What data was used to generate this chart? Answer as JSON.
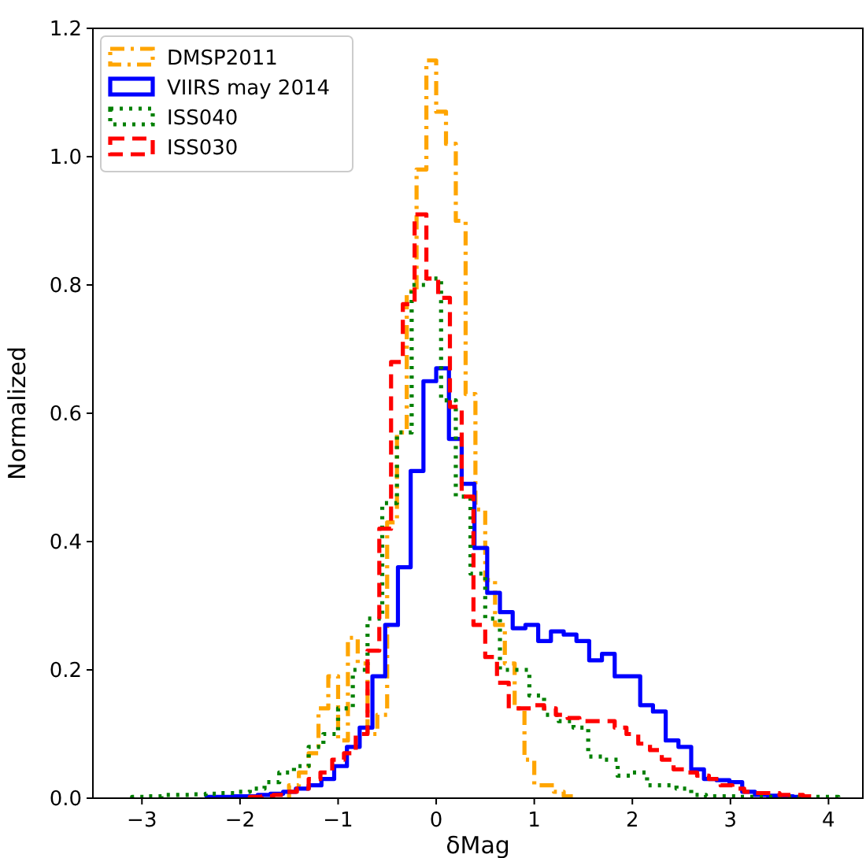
{
  "chart_data": {
    "type": "step",
    "xlabel": "δMag",
    "ylabel": "Normalized",
    "xlim": [
      -3.5,
      4.35
    ],
    "ylim": [
      0,
      1.2
    ],
    "xticks": [
      {
        "value": -3,
        "label": "−3"
      },
      {
        "value": -2,
        "label": "−2"
      },
      {
        "value": -1,
        "label": "−1"
      },
      0,
      1,
      2,
      3,
      4
    ],
    "yticks": [
      {
        "value": 0,
        "label": "0.0"
      },
      {
        "value": 0.2,
        "label": "0.2"
      },
      {
        "value": 0.4,
        "label": "0.4"
      },
      {
        "value": 0.6,
        "label": "0.6"
      },
      {
        "value": 0.8,
        "label": "0.8"
      },
      {
        "value": 1,
        "label": "1.0"
      },
      {
        "value": 1.2,
        "label": "1.2"
      }
    ],
    "grid": false,
    "legend": "top left",
    "marker": "none",
    "series": [
      {
        "name": "DMSP2011",
        "color": "#ffa500",
        "line_style": "dashdot",
        "x": [
          -1.5,
          -1.5,
          -1.4,
          -1.3,
          -1.2,
          -1.1,
          -1.0,
          -0.9,
          -0.8,
          -0.7,
          -0.6,
          -0.5,
          -0.4,
          -0.3,
          -0.2,
          -0.1,
          0,
          0.1,
          0.2,
          0.3,
          0.4,
          0.5,
          0.6,
          0.7,
          0.8,
          0.9,
          1.0,
          1.1,
          1.2,
          1.3,
          1.4
        ],
        "values": [
          0,
          0.02,
          0.04,
          0.07,
          0.14,
          0.19,
          0.09,
          0.25,
          0.21,
          0.1,
          0.13,
          0.43,
          0.57,
          0.79,
          0.98,
          1.15,
          1.07,
          1.02,
          0.9,
          0.63,
          0.45,
          0.34,
          0.27,
          0.21,
          0.14,
          0.06,
          0.02,
          0.02,
          0.01,
          0.003,
          0
        ]
      },
      {
        "name": "VIIRS may 2014",
        "color": "#0000ff",
        "line_style": "solid",
        "x": [
          -2.34,
          -2.34,
          -2.21,
          -2.08,
          -1.95,
          -1.82,
          -1.69,
          -1.56,
          -1.43,
          -1.3,
          -1.17,
          -1.04,
          -0.91,
          -0.78,
          -0.65,
          -0.52,
          -0.39,
          -0.26,
          -0.13,
          0,
          0.13,
          0.26,
          0.39,
          0.52,
          0.65,
          0.78,
          0.91,
          1.04,
          1.17,
          1.3,
          1.43,
          1.56,
          1.69,
          1.82,
          1.95,
          2.08,
          2.21,
          2.34,
          2.47,
          2.6,
          2.73,
          2.86,
          2.99,
          3.12,
          3.25,
          3.38,
          3.51,
          3.64,
          3.77
        ],
        "values": [
          0,
          0.002,
          0.002,
          0.003,
          0.003,
          0.005,
          0.007,
          0.01,
          0.015,
          0.02,
          0.03,
          0.05,
          0.08,
          0.11,
          0.19,
          0.27,
          0.36,
          0.51,
          0.65,
          0.67,
          0.56,
          0.49,
          0.39,
          0.32,
          0.29,
          0.265,
          0.27,
          0.245,
          0.26,
          0.255,
          0.245,
          0.215,
          0.225,
          0.19,
          0.19,
          0.145,
          0.135,
          0.09,
          0.08,
          0.045,
          0.03,
          0.028,
          0.025,
          0.01,
          0.005,
          0.004,
          0.003,
          0.002,
          0
        ]
      },
      {
        "name": "ISS040",
        "color": "#008000",
        "line_style": "dotted",
        "x": [
          -3.1,
          -3.1,
          -2.95,
          -2.8,
          -2.65,
          -2.5,
          -2.35,
          -2.2,
          -2.05,
          -1.9,
          -1.75,
          -1.6,
          -1.45,
          -1.3,
          -1.15,
          -1.0,
          -0.85,
          -0.7,
          -0.55,
          -0.4,
          -0.25,
          -0.1,
          0.05,
          0.2,
          0.35,
          0.5,
          0.65,
          0.8,
          0.95,
          1.1,
          1.25,
          1.4,
          1.55,
          1.7,
          1.85,
          2.0,
          2.15,
          2.3,
          2.45,
          2.6,
          2.75,
          2.9,
          3.05,
          3.2,
          3.35,
          3.5,
          3.65,
          3.8,
          3.95,
          4.1
        ],
        "values": [
          0,
          0.002,
          0.003,
          0.005,
          0.005,
          0.006,
          0.007,
          0.008,
          0.01,
          0.015,
          0.025,
          0.04,
          0.05,
          0.08,
          0.1,
          0.14,
          0.2,
          0.28,
          0.46,
          0.57,
          0.8,
          0.81,
          0.62,
          0.47,
          0.35,
          0.28,
          0.2,
          0.2,
          0.16,
          0.13,
          0.12,
          0.11,
          0.065,
          0.06,
          0.035,
          0.04,
          0.02,
          0.02,
          0.015,
          0.005,
          0.003,
          0.003,
          0.002,
          0.002,
          0.002,
          0.002,
          0.002,
          0.002,
          0.002,
          0
        ]
      },
      {
        "name": "ISS030",
        "color": "#ff0000",
        "line_style": "dashed",
        "x": [
          -1.9,
          -1.9,
          -1.78,
          -1.66,
          -1.54,
          -1.42,
          -1.3,
          -1.18,
          -1.06,
          -0.94,
          -0.82,
          -0.7,
          -0.58,
          -0.46,
          -0.34,
          -0.22,
          -0.1,
          0.02,
          0.14,
          0.26,
          0.38,
          0.5,
          0.62,
          0.74,
          0.86,
          0.98,
          1.1,
          1.22,
          1.34,
          1.46,
          1.58,
          1.7,
          1.82,
          1.94,
          2.06,
          2.18,
          2.3,
          2.42,
          2.54,
          2.66,
          2.78,
          2.9,
          3.02,
          3.14,
          3.26,
          3.38,
          3.5,
          3.62,
          3.74,
          3.86
        ],
        "values": [
          0,
          0.002,
          0.003,
          0.005,
          0.01,
          0.015,
          0.03,
          0.04,
          0.06,
          0.07,
          0.1,
          0.23,
          0.42,
          0.68,
          0.77,
          0.91,
          0.81,
          0.78,
          0.61,
          0.47,
          0.27,
          0.22,
          0.18,
          0.14,
          0.14,
          0.145,
          0.14,
          0.13,
          0.125,
          0.12,
          0.12,
          0.12,
          0.11,
          0.1,
          0.085,
          0.075,
          0.06,
          0.045,
          0.04,
          0.035,
          0.03,
          0.02,
          0.015,
          0.01,
          0.008,
          0.008,
          0.005,
          0.005,
          0.003,
          0
        ]
      }
    ]
  }
}
